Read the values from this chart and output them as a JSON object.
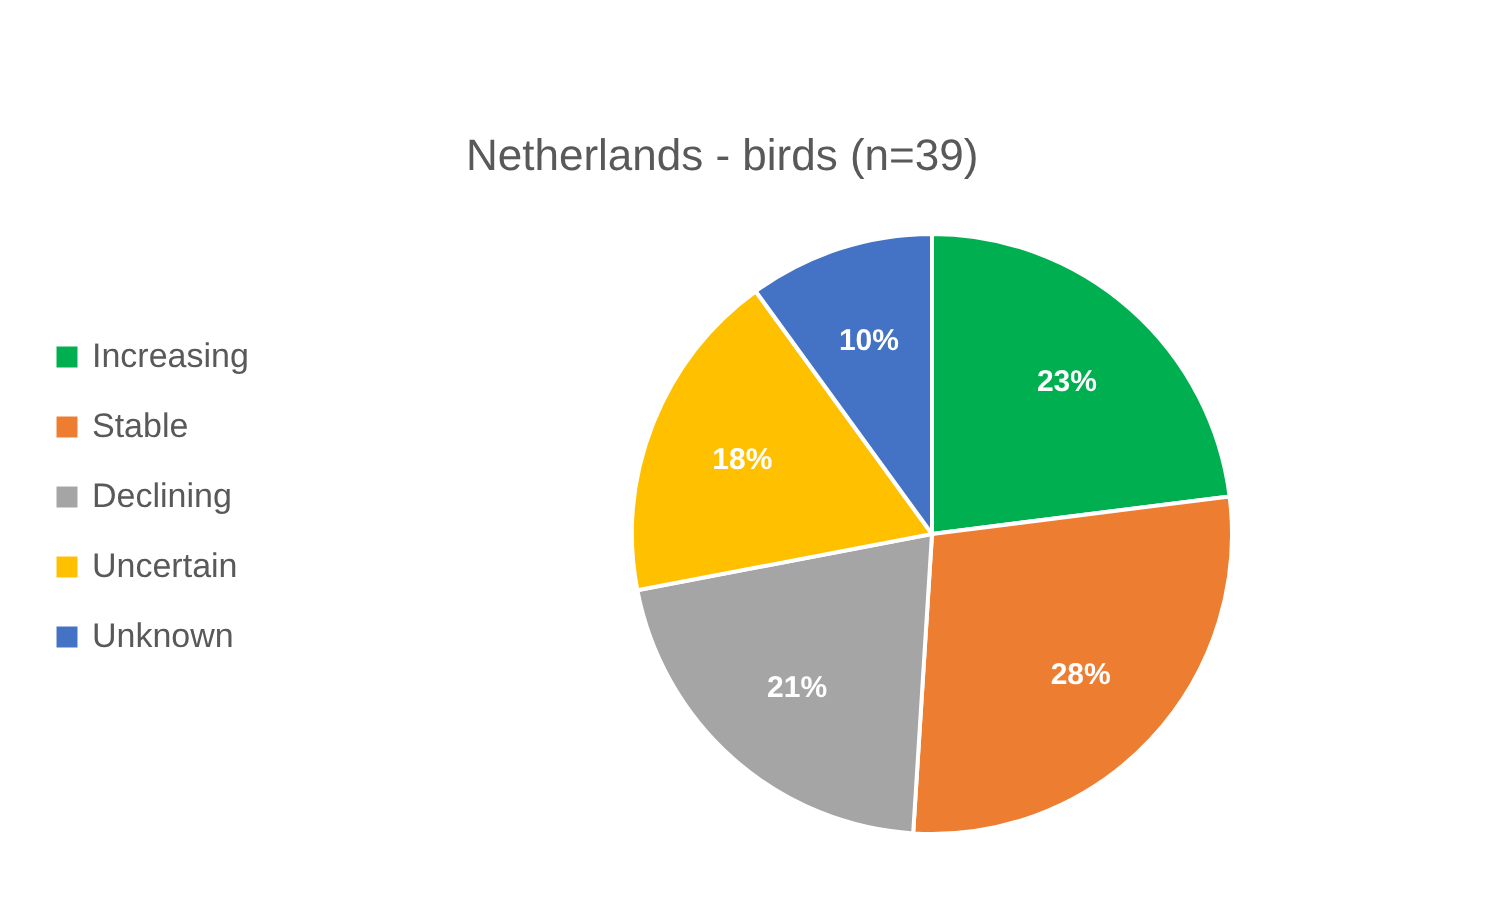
{
  "chart_data": {
    "type": "pie",
    "title": "Netherlands - birds (n=39)",
    "categories": [
      "Increasing",
      "Stable",
      "Declining",
      "Uncertain",
      "Unknown"
    ],
    "values": [
      23,
      28,
      21,
      18,
      10
    ],
    "colors": [
      "#00b050",
      "#ed7d31",
      "#a5a5a5",
      "#ffc000",
      "#4472c4"
    ],
    "value_labels": [
      "23%",
      "28%",
      "21%",
      "18%",
      "10%"
    ],
    "legend": "left"
  }
}
